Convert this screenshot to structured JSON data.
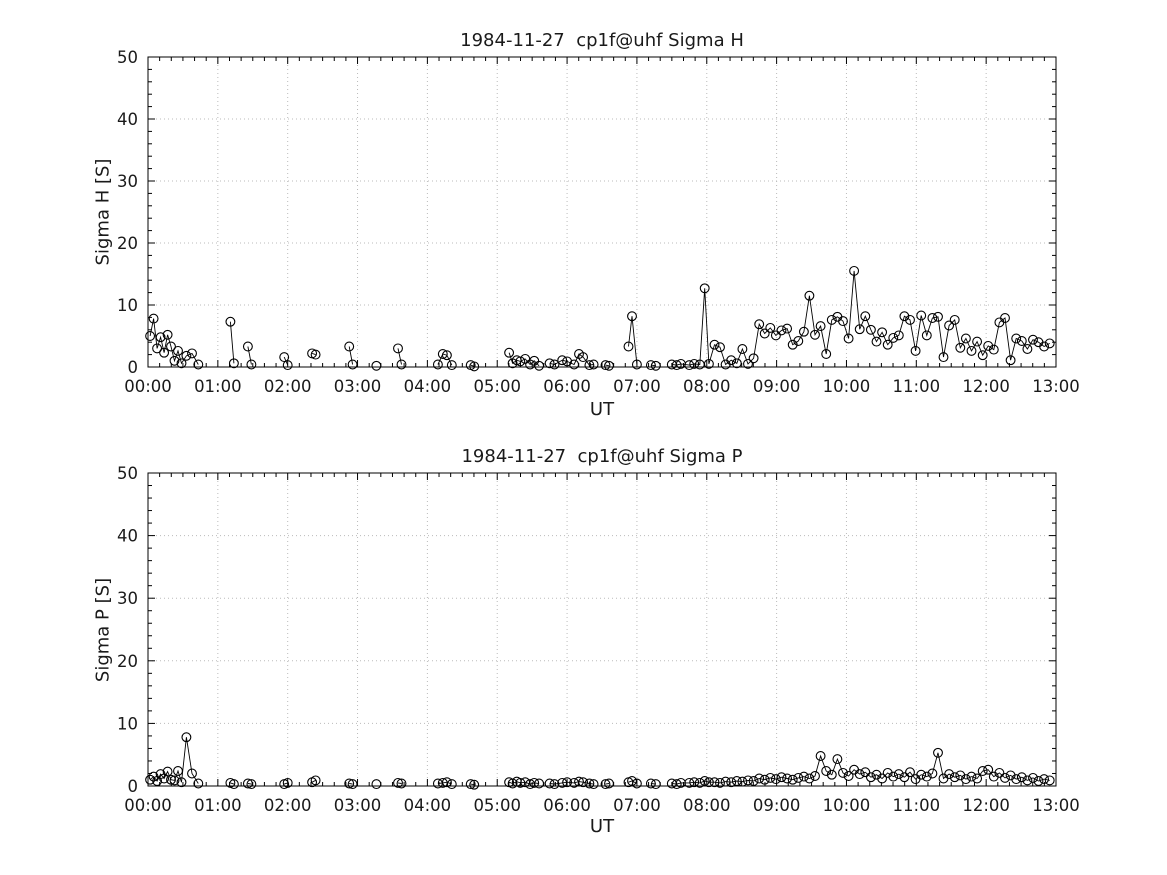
{
  "style": {
    "background": "#ffffff",
    "grid_color": "#bbbbbb",
    "axis_color": "#000000",
    "data_color": "#000000",
    "marker": "open-circle"
  },
  "chart_data": [
    {
      "id": "sigma-h",
      "type": "line",
      "title": "1984-11-27  cp1f@uhf Sigma H",
      "xlabel": "UT",
      "ylabel": "Sigma H [S]",
      "xlim": [
        0,
        13
      ],
      "ylim": [
        0,
        50
      ],
      "xticks": [
        0,
        1,
        2,
        3,
        4,
        5,
        6,
        7,
        8,
        9,
        10,
        11,
        12,
        13
      ],
      "xtick_labels": [
        "00:00",
        "01:00",
        "02:00",
        "03:00",
        "04:00",
        "05:00",
        "06:00",
        "07:00",
        "08:00",
        "09:00",
        "10:00",
        "11:00",
        "12:00",
        "13:00"
      ],
      "yticks": [
        0,
        10,
        20,
        30,
        40,
        50
      ],
      "x_minor_divisions": 6,
      "y_minor_divisions": 5,
      "grid": true,
      "legend": false,
      "x": [
        0.03,
        0.08,
        0.13,
        0.18,
        0.23,
        0.28,
        0.33,
        0.38,
        0.43,
        0.48,
        0.55,
        0.63,
        0.72,
        1.18,
        1.23,
        1.43,
        1.48,
        1.95,
        2.0,
        2.35,
        2.4,
        2.88,
        2.93,
        3.27,
        3.58,
        3.63,
        4.15,
        4.22,
        4.28,
        4.35,
        4.62,
        4.67,
        5.17,
        5.22,
        5.28,
        5.33,
        5.4,
        5.47,
        5.53,
        5.6,
        5.75,
        5.82,
        5.93,
        6.0,
        6.1,
        6.17,
        6.23,
        6.32,
        6.38,
        6.55,
        6.6,
        6.88,
        6.93,
        7.0,
        7.2,
        7.27,
        7.5,
        7.57,
        7.63,
        7.75,
        7.82,
        7.9,
        7.97,
        8.03,
        8.11,
        8.19,
        8.27,
        8.35,
        8.43,
        8.51,
        8.59,
        8.67,
        8.75,
        8.83,
        8.91,
        8.99,
        9.07,
        9.15,
        9.23,
        9.31,
        9.39,
        9.47,
        9.55,
        9.63,
        9.71,
        9.79,
        9.87,
        9.95,
        10.03,
        10.11,
        10.19,
        10.27,
        10.35,
        10.43,
        10.51,
        10.59,
        10.67,
        10.75,
        10.83,
        10.91,
        10.99,
        11.07,
        11.15,
        11.23,
        11.31,
        11.39,
        11.47,
        11.55,
        11.63,
        11.71,
        11.79,
        11.87,
        11.95,
        12.03,
        12.11,
        12.19,
        12.27,
        12.35,
        12.43,
        12.51,
        12.59,
        12.67,
        12.75,
        12.83,
        12.91
      ],
      "y": [
        5.0,
        7.8,
        3.0,
        4.8,
        2.3,
        5.2,
        3.3,
        1.0,
        2.6,
        0.6,
        1.8,
        2.2,
        0.4,
        7.3,
        0.6,
        3.3,
        0.4,
        1.6,
        0.3,
        2.2,
        2.0,
        3.3,
        0.4,
        0.2,
        3.0,
        0.4,
        0.4,
        2.1,
        1.9,
        0.3,
        0.3,
        0.1,
        2.3,
        0.6,
        1.1,
        0.9,
        1.3,
        0.4,
        1.0,
        0.2,
        0.6,
        0.4,
        1.1,
        0.9,
        0.4,
        2.1,
        1.6,
        0.3,
        0.4,
        0.3,
        0.2,
        3.3,
        8.2,
        0.4,
        0.3,
        0.2,
        0.4,
        0.3,
        0.5,
        0.3,
        0.5,
        0.4,
        12.7,
        0.5,
        3.6,
        3.2,
        0.4,
        1.1,
        0.6,
        2.9,
        0.5,
        1.4,
        6.9,
        5.4,
        6.3,
        5.1,
        5.9,
        6.2,
        3.6,
        4.2,
        5.7,
        11.5,
        5.2,
        6.6,
        2.1,
        7.6,
        8.1,
        7.4,
        4.6,
        15.5,
        6.1,
        8.2,
        6.0,
        4.1,
        5.6,
        3.6,
        4.7,
        5.1,
        8.2,
        7.6,
        2.6,
        8.3,
        5.1,
        7.9,
        8.1,
        1.6,
        6.7,
        7.6,
        3.1,
        4.6,
        2.6,
        4.1,
        1.9,
        3.4,
        2.8,
        7.2,
        7.9,
        1.1,
        4.6,
        4.2,
        2.9,
        4.4,
        4.0,
        3.3,
        3.8
      ]
    },
    {
      "id": "sigma-p",
      "type": "line",
      "title": "1984-11-27  cp1f@uhf Sigma P",
      "xlabel": "UT",
      "ylabel": "Sigma P [S]",
      "xlim": [
        0,
        13
      ],
      "ylim": [
        0,
        50
      ],
      "xticks": [
        0,
        1,
        2,
        3,
        4,
        5,
        6,
        7,
        8,
        9,
        10,
        11,
        12,
        13
      ],
      "xtick_labels": [
        "00:00",
        "01:00",
        "02:00",
        "03:00",
        "04:00",
        "05:00",
        "06:00",
        "07:00",
        "08:00",
        "09:00",
        "10:00",
        "11:00",
        "12:00",
        "13:00"
      ],
      "yticks": [
        0,
        10,
        20,
        30,
        40,
        50
      ],
      "x_minor_divisions": 6,
      "y_minor_divisions": 5,
      "grid": true,
      "legend": false,
      "x": [
        0.03,
        0.08,
        0.13,
        0.18,
        0.23,
        0.28,
        0.33,
        0.38,
        0.43,
        0.48,
        0.55,
        0.63,
        0.72,
        1.18,
        1.23,
        1.43,
        1.48,
        1.95,
        2.0,
        2.35,
        2.4,
        2.88,
        2.93,
        3.27,
        3.58,
        3.63,
        4.15,
        4.22,
        4.28,
        4.35,
        4.62,
        4.67,
        5.17,
        5.22,
        5.28,
        5.33,
        5.4,
        5.47,
        5.53,
        5.6,
        5.75,
        5.82,
        5.93,
        6.0,
        6.1,
        6.17,
        6.23,
        6.32,
        6.38,
        6.55,
        6.6,
        6.88,
        6.93,
        7.0,
        7.2,
        7.27,
        7.5,
        7.57,
        7.63,
        7.75,
        7.82,
        7.9,
        7.97,
        8.03,
        8.11,
        8.19,
        8.27,
        8.35,
        8.43,
        8.51,
        8.59,
        8.67,
        8.75,
        8.83,
        8.91,
        8.99,
        9.07,
        9.15,
        9.23,
        9.31,
        9.39,
        9.47,
        9.55,
        9.63,
        9.71,
        9.79,
        9.87,
        9.95,
        10.03,
        10.11,
        10.19,
        10.27,
        10.35,
        10.43,
        10.51,
        10.59,
        10.67,
        10.75,
        10.83,
        10.91,
        10.99,
        11.07,
        11.15,
        11.23,
        11.31,
        11.39,
        11.47,
        11.55,
        11.63,
        11.71,
        11.79,
        11.87,
        11.95,
        12.03,
        12.11,
        12.19,
        12.27,
        12.35,
        12.43,
        12.51,
        12.59,
        12.67,
        12.75,
        12.83,
        12.91
      ],
      "y": [
        1.0,
        1.5,
        0.8,
        1.9,
        1.2,
        2.3,
        1.0,
        0.9,
        2.4,
        0.6,
        7.8,
        2.0,
        0.4,
        0.5,
        0.3,
        0.4,
        0.3,
        0.3,
        0.5,
        0.6,
        0.9,
        0.4,
        0.3,
        0.3,
        0.5,
        0.4,
        0.4,
        0.5,
        0.6,
        0.3,
        0.3,
        0.2,
        0.6,
        0.4,
        0.7,
        0.5,
        0.6,
        0.3,
        0.5,
        0.4,
        0.4,
        0.3,
        0.5,
        0.6,
        0.5,
        0.7,
        0.6,
        0.4,
        0.3,
        0.3,
        0.4,
        0.6,
        0.8,
        0.4,
        0.4,
        0.3,
        0.4,
        0.3,
        0.5,
        0.5,
        0.6,
        0.5,
        0.8,
        0.6,
        0.6,
        0.5,
        0.7,
        0.6,
        0.8,
        0.7,
        0.9,
        0.8,
        1.2,
        1.0,
        1.3,
        1.1,
        1.4,
        1.2,
        1.0,
        1.3,
        1.5,
        1.2,
        1.6,
        4.8,
        2.4,
        1.8,
        4.3,
        2.1,
        1.6,
        2.6,
        1.9,
        2.2,
        1.4,
        1.8,
        1.2,
        2.1,
        1.5,
        1.9,
        1.4,
        2.2,
        1.1,
        1.8,
        1.5,
        2.0,
        5.3,
        1.2,
        1.9,
        1.4,
        1.7,
        1.1,
        1.5,
        1.2,
        2.4,
        2.6,
        1.5,
        2.1,
        1.3,
        1.7,
        1.1,
        1.4,
        0.9,
        1.3,
        0.8,
        1.1,
        0.9
      ]
    }
  ]
}
